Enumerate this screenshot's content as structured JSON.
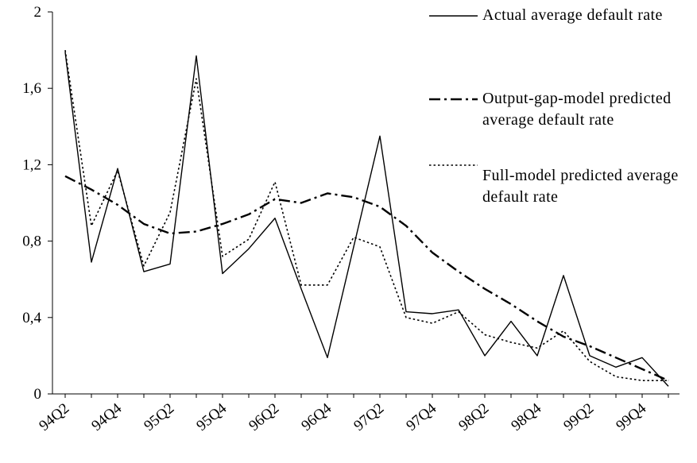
{
  "chart_data": {
    "type": "line",
    "categories": [
      "94Q2",
      null,
      "94Q4",
      null,
      "95Q2",
      null,
      "95Q4",
      null,
      "96Q2",
      null,
      "96Q4",
      null,
      "97Q2",
      null,
      "97Q4",
      null,
      "98Q2",
      null,
      "98Q4",
      null,
      "99Q2",
      null,
      "99Q4",
      null
    ],
    "series": [
      {
        "name": "Actual average default rate",
        "color": "#000000",
        "dash": "solid",
        "values": [
          1.79,
          0.69,
          1.18,
          0.64,
          0.68,
          1.77,
          0.63,
          0.76,
          0.92,
          0.55,
          0.19,
          0.77,
          1.35,
          0.43,
          0.42,
          0.44,
          0.2,
          0.38,
          0.2,
          0.62,
          0.2,
          0.14,
          0.19,
          0.04
        ]
      },
      {
        "name": "Output-gap-model predicted average default rate",
        "color": "#000000",
        "dash": "dashdot",
        "values": [
          1.14,
          1.07,
          0.99,
          0.89,
          0.84,
          0.85,
          0.89,
          0.94,
          1.02,
          1.0,
          1.05,
          1.03,
          0.98,
          0.88,
          0.74,
          0.64,
          0.55,
          0.47,
          0.38,
          0.3,
          0.25,
          0.19,
          0.13,
          0.07
        ]
      },
      {
        "name": "Full-model predicted average default rate",
        "color": "#000000",
        "dash": "dotted",
        "values": [
          1.8,
          0.88,
          1.17,
          0.67,
          0.95,
          1.65,
          0.72,
          0.81,
          1.11,
          0.57,
          0.57,
          0.82,
          0.77,
          0.4,
          0.37,
          0.43,
          0.31,
          0.27,
          0.24,
          0.33,
          0.17,
          0.09,
          0.07,
          0.07
        ]
      }
    ],
    "ylim": [
      0,
      2
    ],
    "yticks": [
      0,
      {
        "value": 0.4,
        "label": "0,4"
      },
      {
        "value": 0.8,
        "label": "0,8"
      },
      {
        "value": 1.2,
        "label": "1,2"
      },
      {
        "value": 1.6,
        "label": "1,6"
      },
      2
    ],
    "grid": false,
    "legend": "right"
  }
}
